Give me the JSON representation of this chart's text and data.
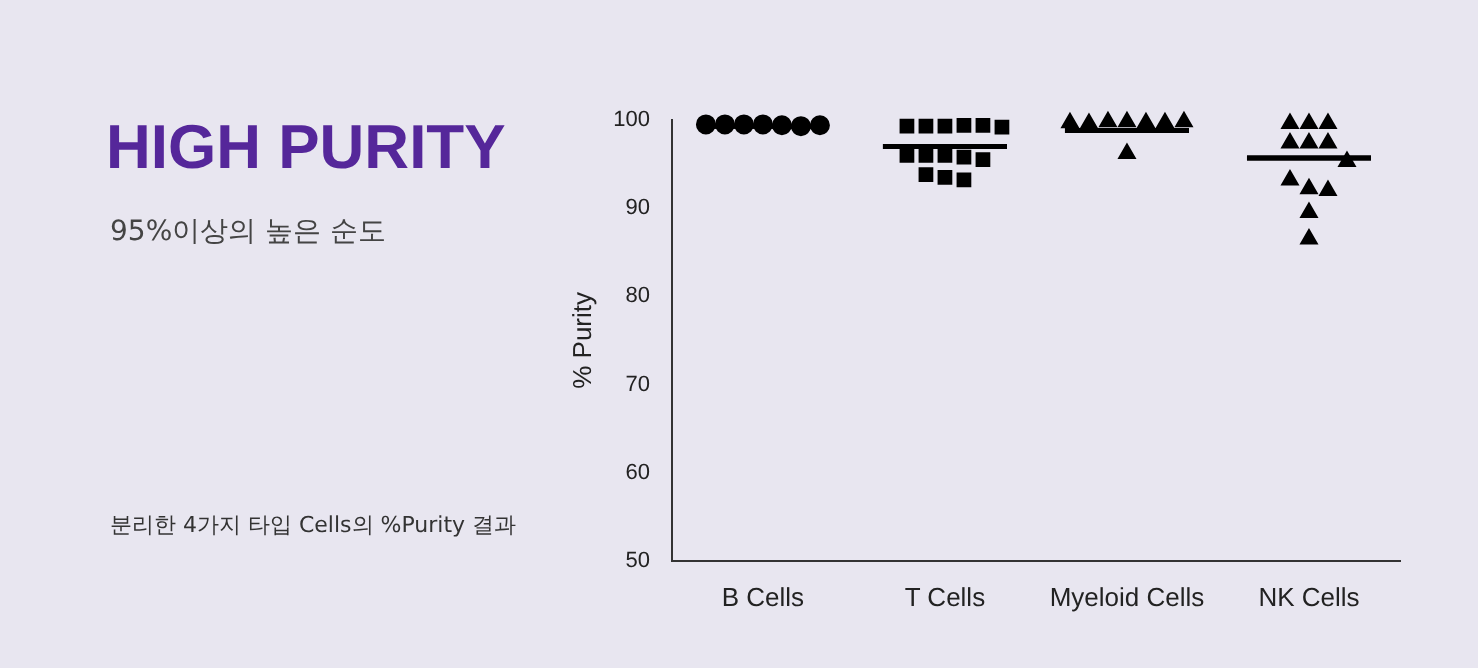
{
  "chart_data": {
    "type": "scatter",
    "title": "HIGH PURITY",
    "subtitle": "95%이상의 높은 순도",
    "annotations": [
      "분리한 4가지 타입 Cells의 %Purity 결과"
    ],
    "ylabel": "% Purity",
    "categories": [
      "B Cells",
      "T Cells",
      "Myeloid Cells",
      "NK Cells"
    ],
    "ylim": [
      50,
      100
    ],
    "yticks": [
      50,
      60,
      70,
      80,
      90,
      100
    ],
    "grid": false,
    "legend": false,
    "series": [
      {
        "color": "#000000",
        "marker": "circle",
        "x": [
          "B Cells",
          "B Cells",
          "B Cells",
          "B Cells",
          "B Cells",
          "B Cells",
          "B Cells"
        ],
        "values": [
          99.5,
          99.4,
          99.5,
          99.3,
          99.5,
          99.4,
          99.5
        ]
      },
      {
        "color": "#000000",
        "marker": "square",
        "x": [
          "T Cells",
          "T Cells",
          "T Cells",
          "T Cells",
          "T Cells",
          "T Cells",
          "T Cells",
          "T Cells",
          "T Cells",
          "T Cells",
          "T Cells",
          "T Cells",
          "T Cells",
          "T Cells"
        ],
        "values": [
          99.3,
          99.4,
          99.3,
          99.4,
          99.3,
          99.2,
          96,
          95.8,
          96,
          95.5,
          96,
          93.5,
          93.2,
          93.8
        ]
      },
      {
        "color": "#000000",
        "marker": "triangle",
        "x": [
          "Myeloid Cells",
          "Myeloid Cells",
          "Myeloid Cells",
          "Myeloid Cells",
          "Myeloid Cells",
          "Myeloid Cells",
          "Myeloid Cells",
          "Myeloid Cells"
        ],
        "values": [
          99.8,
          99.7,
          99.8,
          99.7,
          99.6,
          99.8,
          99.7,
          96.2
        ]
      },
      {
        "color": "#000000",
        "marker": "triangle",
        "x": [
          "NK Cells",
          "NK Cells",
          "NK Cells",
          "NK Cells",
          "NK Cells",
          "NK Cells",
          "NK Cells",
          "NK Cells",
          "NK Cells",
          "NK Cells",
          "NK Cells",
          "NK Cells"
        ],
        "values": [
          99.6,
          99.6,
          99.6,
          97.4,
          97.4,
          97.4,
          95.3,
          92.2,
          92,
          93.2,
          89.5,
          86.5
        ]
      },
      {
        "type": "box",
        "color": "#000000",
        "boxes": [
          {
            "low": 99.3,
            "q1": 99.3,
            "median": 99.3,
            "q3": 99.3,
            "high": 99.3
          },
          {
            "low": 97,
            "q1": 97,
            "median": 97,
            "q3": 97,
            "high": 97
          },
          {
            "low": 98.8,
            "q1": 98.8,
            "median": 98.8,
            "q3": 98.8,
            "high": 98.8
          },
          {
            "low": 95.7,
            "q1": 95.7,
            "median": 95.7,
            "q3": 95.7,
            "high": 95.7
          }
        ]
      }
    ]
  }
}
